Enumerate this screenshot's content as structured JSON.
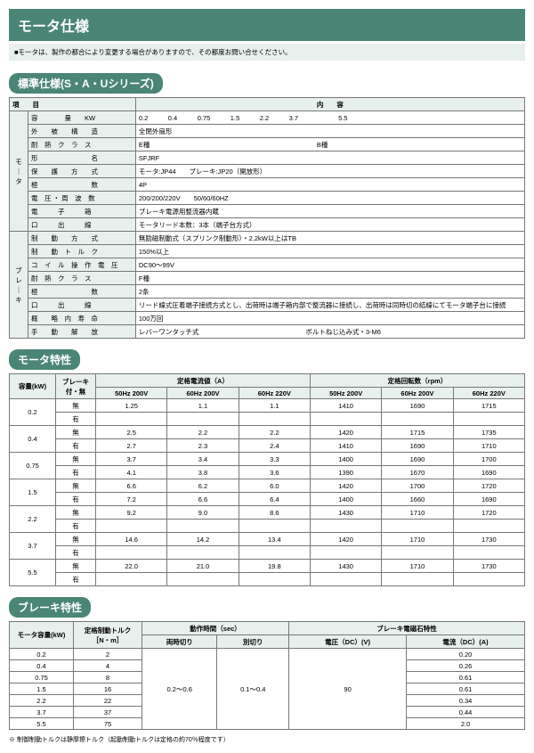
{
  "page_title": "モータ仕様",
  "note": "■モータは、製作の都合により変更する場合がありますので、その都度お問い合せください。",
  "section1": {
    "header": "標準仕様(S・A・Uシリーズ)",
    "col_left": "項　　目",
    "col_right": "内　　容",
    "motor_label": "モ｜タ",
    "brake_label": "ブレ｜キ",
    "rows": [
      {
        "label": "容　　　　量　　KW",
        "value": "0.2　　　0.4　　　0.75　　　1.5　　　2.2　　　3.7　　　　　　5.5"
      },
      {
        "label": "外　　被　　構　　造",
        "value": "全閉外扇形"
      },
      {
        "label": "耐　熱　ク　ラ　ス",
        "value": "E種　　　　　　　　　　　　　　　　　　　　　　　　　B種"
      },
      {
        "label": "形　　　　　　　　名",
        "value": "SFJRF"
      },
      {
        "label": "保　　護　　方　　式",
        "value": "モータ:JP44　　ブレーキ:JP20（開放形）"
      },
      {
        "label": "極　　　　　　　　数",
        "value": "4P"
      },
      {
        "label": "電　圧 ・ 周　波　数",
        "value": "200/200/220V　　50/60/60HZ"
      },
      {
        "label": "電　　　子　　　箱",
        "value": "ブレーキ電源用整流器内蔵"
      },
      {
        "label": "口　　　出　　　線",
        "value": "モータリード本数：3本（端子台方式）"
      },
      {
        "label": "制　　動　　方　　式",
        "value": "無励磁制動式（スプリンク制動形）・2.2kW以上はTB"
      },
      {
        "label": "制　　動　ト　ル　ク",
        "value": "150%以上"
      },
      {
        "label": "コ　イ　ル　操　作　電　圧",
        "value": "DC90～99V"
      },
      {
        "label": "耐　熱　ク　ラ　ス",
        "value": "F種"
      },
      {
        "label": "極　　　　　　　　数",
        "value": "2条"
      },
      {
        "label": "口　　　出　　　線",
        "value": "リード線式圧着端子接続方式とし、出荷時は端子箱内部で整流器に接続し、出荷時は同時切の結線にてモータ端子台に接続"
      },
      {
        "label": "概　　略　内　寿　命",
        "value": "100万回"
      },
      {
        "label": "手　　動　　解　　放",
        "value": "レバーワンタッチ式　　　　　　　　　　　　　　　　ボルトねじ込み式・3-M6"
      }
    ]
  },
  "section2": {
    "header": "モータ特性",
    "h_capacity": "容量(kW)",
    "h_brake": "ブレーキ付・無",
    "h_current": "定格電流値（A）",
    "h_rpm": "定格回転数（rpm）",
    "sub_50_200": "50Hz 200V",
    "sub_60_200": "60Hz 200V",
    "sub_60_220": "60Hz 220V",
    "rows": [
      {
        "cap": "0.2",
        "b": "無",
        "c": [
          "1.25",
          "1.1",
          "1.1",
          "1410",
          "1690",
          "1715"
        ]
      },
      {
        "cap": "",
        "b": "有",
        "c": [
          "",
          "",
          "",
          "",
          "",
          ""
        ]
      },
      {
        "cap": "0.4",
        "b": "無",
        "c": [
          "2.5",
          "2.2",
          "2.2",
          "1420",
          "1715",
          "1735"
        ]
      },
      {
        "cap": "",
        "b": "有",
        "c": [
          "2.7",
          "2.3",
          "2.4",
          "1410",
          "1690",
          "1710"
        ]
      },
      {
        "cap": "0.75",
        "b": "無",
        "c": [
          "3.7",
          "3.4",
          "3.3",
          "1400",
          "1690",
          "1700"
        ]
      },
      {
        "cap": "",
        "b": "有",
        "c": [
          "4.1",
          "3.8",
          "3.6",
          "1390",
          "1670",
          "1690"
        ]
      },
      {
        "cap": "1.5",
        "b": "無",
        "c": [
          "6.6",
          "6.2",
          "6.0",
          "1420",
          "1700",
          "1720"
        ]
      },
      {
        "cap": "",
        "b": "有",
        "c": [
          "7.2",
          "6.6",
          "6.4",
          "1400",
          "1660",
          "1690"
        ]
      },
      {
        "cap": "2.2",
        "b": "無",
        "c": [
          "9.2",
          "9.0",
          "8.6",
          "1430",
          "1710",
          "1720"
        ]
      },
      {
        "cap": "",
        "b": "有",
        "c": [
          "",
          "",
          "",
          "",
          "",
          ""
        ]
      },
      {
        "cap": "3.7",
        "b": "無",
        "c": [
          "14.6",
          "14.2",
          "13.4",
          "1420",
          "1710",
          "1730"
        ]
      },
      {
        "cap": "",
        "b": "有",
        "c": [
          "",
          "",
          "",
          "",
          "",
          ""
        ]
      },
      {
        "cap": "5.5",
        "b": "無",
        "c": [
          "22.0",
          "21.0",
          "19.8",
          "1430",
          "1710",
          "1730"
        ]
      },
      {
        "cap": "",
        "b": "有",
        "c": [
          "",
          "",
          "",
          "",
          "",
          ""
        ]
      }
    ]
  },
  "section3": {
    "header": "ブレーキ特性",
    "h_cap": "モータ容量(kW)",
    "h_torque": "定格制動トルク［N・m］",
    "h_time": "動作時間（sec）",
    "h_t1": "両時切り",
    "h_t2": "別切り",
    "h_mag": "ブレーキ電磁石特性",
    "h_v": "電圧（DC）(V)",
    "h_a": "電流（DC）(A)",
    "t1": "0.2～0.6",
    "t2": "0.1～0.4",
    "v": "90",
    "rows": [
      {
        "c": "0.2",
        "t": "2",
        "a": "0.20"
      },
      {
        "c": "0.4",
        "t": "4",
        "a": "0.26"
      },
      {
        "c": "0.75",
        "t": "8",
        "a": "0.61"
      },
      {
        "c": "1.5",
        "t": "16",
        "a": "0.61"
      },
      {
        "c": "2.2",
        "t": "22",
        "a": "0.34"
      },
      {
        "c": "3.7",
        "t": "37",
        "a": "0.44"
      },
      {
        "c": "5.5",
        "t": "75",
        "a": "2.0"
      }
    ],
    "footnote": "※ 制御制動トルクは静摩擦トルク（起動制動トルクは定格の約70％程度です）"
  }
}
